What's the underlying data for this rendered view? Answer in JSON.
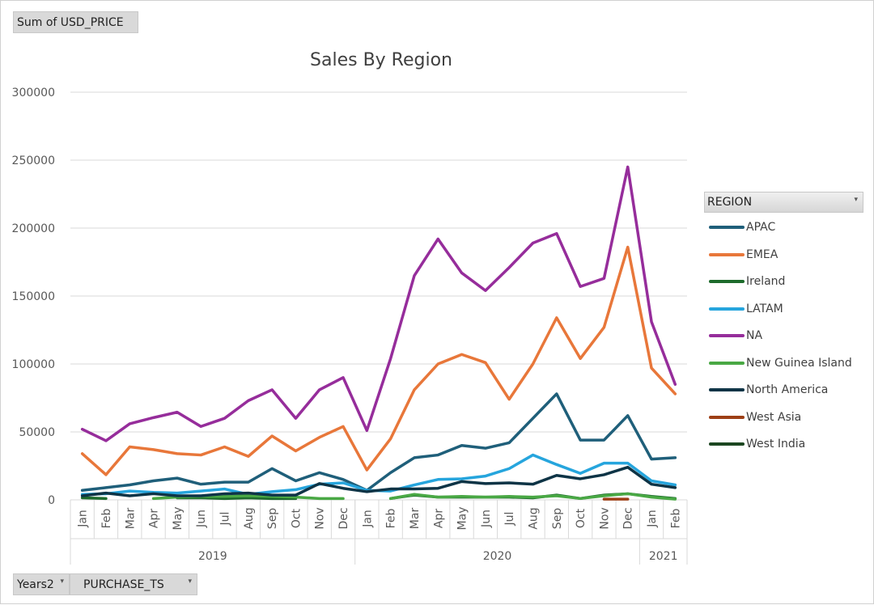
{
  "pivot": {
    "value_field": "Sum of USD_PRICE",
    "axis_fields": [
      "Years2",
      "PURCHASE_TS"
    ],
    "legend_field": "REGION"
  },
  "colors": {
    "APAC": "#1f5f7a",
    "EMEA": "#e8773a",
    "Ireland": "#1d6b2c",
    "LATAM": "#26a5dd",
    "NA": "#962d9b",
    "New Guinea Island": "#49a844",
    "North America": "#0e3446",
    "West Asia": "#9d3f16",
    "West India": "#1b4620"
  },
  "chart_data": {
    "type": "line",
    "title": "Sales By Region",
    "xlabel": "",
    "ylabel": "",
    "ylim": [
      0,
      300000
    ],
    "yticks": [
      0,
      50000,
      100000,
      150000,
      200000,
      250000,
      300000
    ],
    "grid": "horizontal",
    "legend_placement": "right",
    "categories": [
      "Jan",
      "Feb",
      "Mar",
      "Apr",
      "May",
      "Jun",
      "Jul",
      "Aug",
      "Sep",
      "Oct",
      "Nov",
      "Dec",
      "Jan",
      "Feb",
      "Mar",
      "Apr",
      "May",
      "Jun",
      "Jul",
      "Aug",
      "Sep",
      "Oct",
      "Nov",
      "Dec",
      "Jan",
      "Feb"
    ],
    "year_groups": [
      {
        "label": "2019",
        "count": 12
      },
      {
        "label": "2020",
        "count": 12
      },
      {
        "label": "2021",
        "count": 2
      }
    ],
    "series": [
      {
        "name": "APAC",
        "values": [
          7000,
          9000,
          11000,
          14000,
          16000,
          11500,
          13000,
          13000,
          23000,
          14000,
          20000,
          15000,
          7000,
          20000,
          31000,
          33000,
          40000,
          38000,
          42000,
          60000,
          78000,
          44000,
          44000,
          62000,
          30000,
          31000
        ]
      },
      {
        "name": "EMEA",
        "values": [
          34000,
          18500,
          39000,
          37000,
          34000,
          33000,
          39000,
          32000,
          47000,
          36000,
          46000,
          54000,
          22000,
          45000,
          81000,
          100000,
          107000,
          101000,
          74000,
          100000,
          134000,
          104000,
          127000,
          186000,
          97000,
          78000
        ]
      },
      {
        "name": "Ireland",
        "values": [
          1500,
          1000,
          null,
          null,
          1500,
          1500,
          1000,
          1500,
          1000,
          1000,
          null,
          null,
          null,
          1000,
          3500,
          2000,
          2000,
          2000,
          2000,
          1500,
          3500,
          1000,
          3500,
          4500,
          2500,
          1000
        ]
      },
      {
        "name": "LATAM",
        "values": [
          4000,
          4500,
          6500,
          5500,
          5000,
          6500,
          8000,
          4000,
          6000,
          7500,
          11500,
          12500,
          7000,
          6500,
          11000,
          15000,
          15500,
          17500,
          23000,
          33000,
          26000,
          19500,
          27000,
          27000,
          14000,
          11000
        ]
      },
      {
        "name": "NA",
        "values": [
          52000,
          43500,
          56000,
          60500,
          64500,
          54000,
          60000,
          73000,
          81000,
          60000,
          81000,
          90000,
          51000,
          104000,
          165000,
          192000,
          167000,
          154000,
          171000,
          189000,
          196000,
          157000,
          163000,
          245000,
          131000,
          85000
        ]
      },
      {
        "name": "New Guinea Island",
        "values": [
          null,
          null,
          null,
          1000,
          2000,
          2500,
          2500,
          3000,
          2500,
          2000,
          1000,
          1000,
          null,
          1000,
          4000,
          2000,
          2500,
          2000,
          2500,
          2000,
          3000,
          1000,
          3000,
          4500,
          2000,
          500
        ]
      },
      {
        "name": "North America",
        "values": [
          3000,
          5000,
          3000,
          4500,
          3000,
          3000,
          4500,
          5000,
          3500,
          3500,
          12000,
          8500,
          6000,
          8000,
          8000,
          8500,
          13500,
          12000,
          12500,
          11500,
          18000,
          15500,
          18500,
          24000,
          11500,
          9000
        ]
      },
      {
        "name": "West Asia",
        "values": [
          null,
          null,
          null,
          null,
          null,
          null,
          null,
          null,
          null,
          null,
          null,
          null,
          null,
          null,
          null,
          null,
          null,
          null,
          null,
          null,
          null,
          null,
          500,
          500,
          null,
          null
        ]
      },
      {
        "name": "West India",
        "values": [
          null,
          null,
          null,
          null,
          null,
          null,
          null,
          null,
          null,
          null,
          null,
          null,
          null,
          null,
          null,
          null,
          null,
          null,
          null,
          null,
          null,
          null,
          null,
          null,
          null,
          null
        ]
      }
    ]
  }
}
